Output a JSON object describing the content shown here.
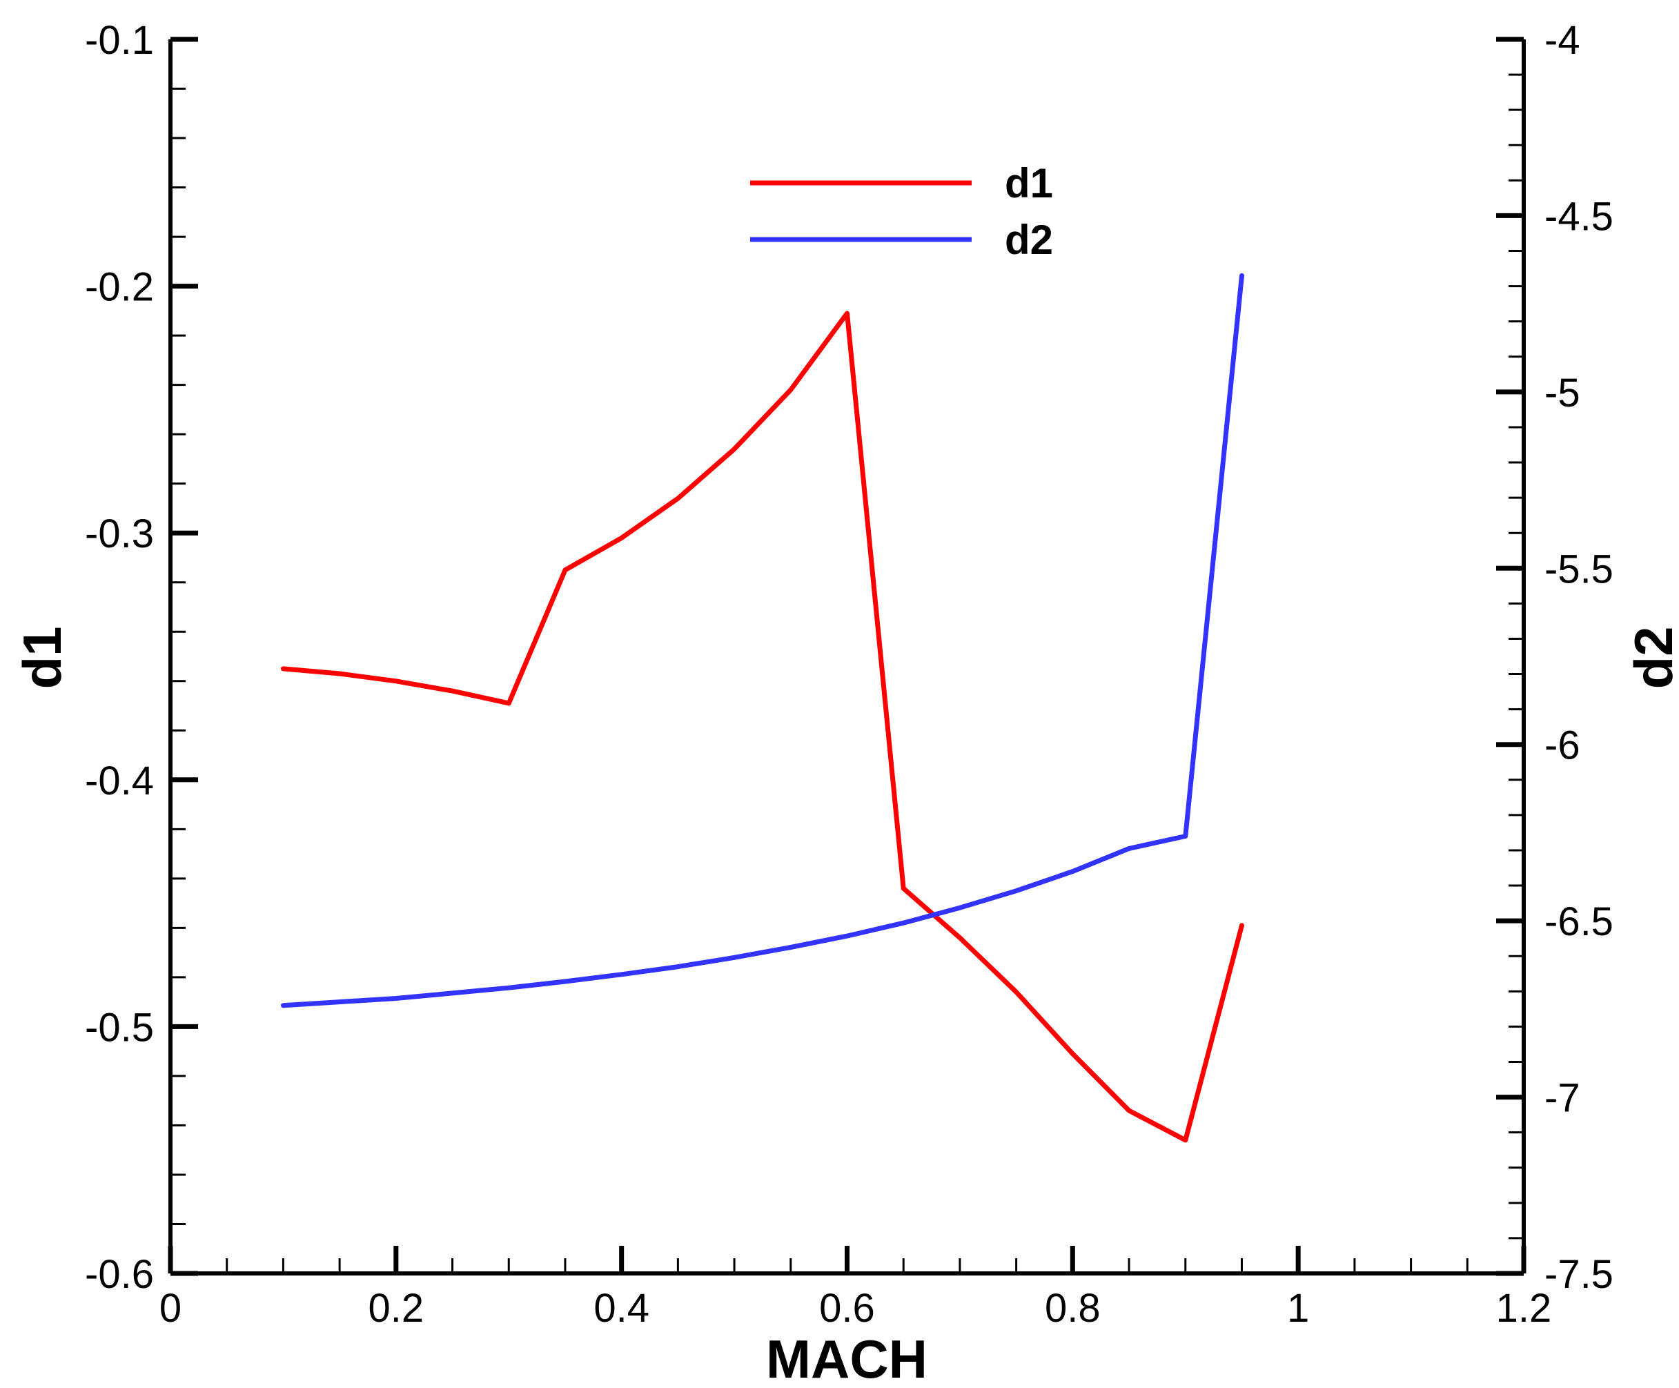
{
  "chart_data": {
    "type": "line",
    "title": "",
    "xlabel": "MACH",
    "ylabel": "d1",
    "y2label": "d2",
    "xlim": [
      0,
      1.2
    ],
    "ylim": [
      -0.6,
      -0.1
    ],
    "y2lim": [
      -7.5,
      -4
    ],
    "x_ticks": [
      0,
      0.2,
      0.4,
      0.6,
      0.8,
      1,
      1.2
    ],
    "x_tick_labels": [
      "0",
      "0.2",
      "0.4",
      "0.6",
      "0.8",
      "1",
      "1.2"
    ],
    "y_ticks": [
      -0.6,
      -0.5,
      -0.4,
      -0.3,
      -0.2,
      -0.1
    ],
    "y_tick_labels": [
      "-0.6",
      "-0.5",
      "-0.4",
      "-0.3",
      "-0.2",
      "-0.1"
    ],
    "y2_ticks": [
      -7.5,
      -7,
      -6.5,
      -6,
      -5.5,
      -5,
      -4.5,
      -4
    ],
    "y2_tick_labels": [
      "-7.5",
      "-7",
      "-6.5",
      "-6",
      "-5.5",
      "-5",
      "-4.5",
      "-4"
    ],
    "grid": false,
    "legend_position": "top-center",
    "series": [
      {
        "name": "d1",
        "axis": "left",
        "color": "#ff0000",
        "x": [
          0.1,
          0.15,
          0.2,
          0.25,
          0.3,
          0.35,
          0.4,
          0.45,
          0.5,
          0.55,
          0.6,
          0.65,
          0.7,
          0.75,
          0.8,
          0.85,
          0.9,
          0.95
        ],
        "y": [
          -0.355,
          -0.357,
          -0.36,
          -0.364,
          -0.369,
          -0.315,
          -0.302,
          -0.286,
          -0.266,
          -0.242,
          -0.211,
          -0.444,
          -0.464,
          -0.486,
          -0.511,
          -0.534,
          -0.546,
          -0.459
        ]
      },
      {
        "name": "d2",
        "axis": "right",
        "color": "#3333ff",
        "x": [
          0.1,
          0.15,
          0.2,
          0.25,
          0.3,
          0.35,
          0.4,
          0.45,
          0.5,
          0.55,
          0.6,
          0.65,
          0.7,
          0.75,
          0.8,
          0.85,
          0.9,
          0.95
        ],
        "y": [
          -6.74,
          -6.73,
          -6.72,
          -6.705,
          -6.69,
          -6.672,
          -6.652,
          -6.63,
          -6.604,
          -6.575,
          -6.543,
          -6.506,
          -6.463,
          -6.415,
          -6.36,
          -6.295,
          -6.26,
          -4.67
        ]
      }
    ]
  }
}
